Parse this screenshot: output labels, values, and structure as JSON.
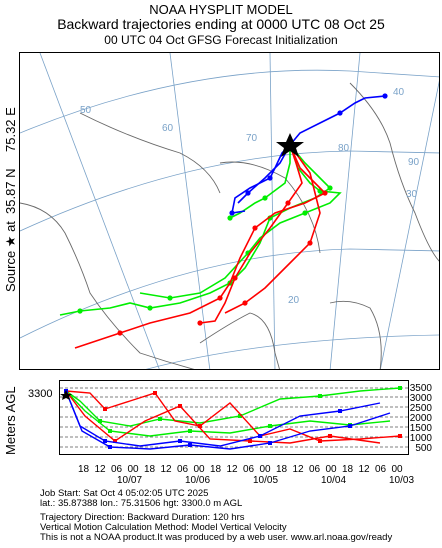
{
  "header": {
    "line1": "NOAA HYSPLIT MODEL",
    "line2": "Backward trajectories ending at 0000 UTC 08 Oct 25",
    "line3": "00 UTC 04 Oct    GFSG  Forecast Initialization"
  },
  "source_label": {
    "prefix": "Source ★  at",
    "lat": "35.87 N",
    "lon": "75.32 E"
  },
  "map": {
    "lat_labels": [
      "50",
      "40",
      "30",
      "20"
    ],
    "lon_labels": [
      "60",
      "70",
      "80",
      "90"
    ],
    "colors": {
      "red": "#ff0000",
      "blue": "#0000ff",
      "green": "#00ee00",
      "grid": "#7aa2c8",
      "coast": "#6a6a6a"
    }
  },
  "height_panel": {
    "ylabel": "Meters AGL",
    "source_height_label": "3300",
    "y_ticks": [
      "3500",
      "3000",
      "2500",
      "2000",
      "1500",
      "1000",
      "500"
    ],
    "x_hour_labels": [
      "18",
      "12",
      "06",
      "00",
      "18",
      "12",
      "06",
      "00",
      "18",
      "12",
      "06",
      "00",
      "18",
      "12",
      "06",
      "00",
      "18",
      "12",
      "06",
      "00"
    ],
    "x_date_labels": [
      "10/07",
      "10/06",
      "10/05",
      "10/04",
      "10/03"
    ]
  },
  "footer": {
    "line1": "Job Start: Sat Oct  4 05:02:05 UTC 2025",
    "line2": "lat.: 35.87388   lon.: 75.31506   hgt: 3300.0 m AGL",
    "line3": "Trajectory Direction: Backward        Duration: 120 hrs",
    "line4": "Vertical Motion Calculation Method: Model Vertical Velocity",
    "line5": "This is not a NOAA product.It was produced by a web user. www.arl.noaa.gov/ready"
  }
}
